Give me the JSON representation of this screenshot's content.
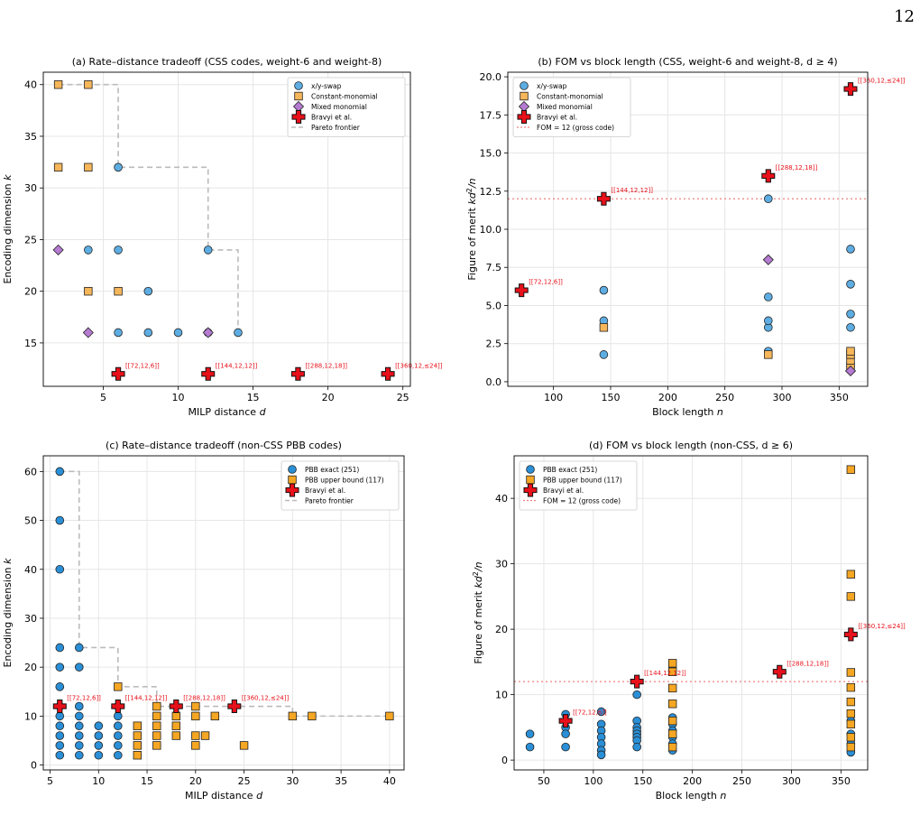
{
  "page": {
    "number": "12"
  },
  "colors": {
    "xy_swap": "#5dade2",
    "constant_monomial": "#f6b65a",
    "mixed_monomial": "#b57bd1",
    "bravyi": "#e8101a",
    "pareto": "#bbbbbb",
    "fom_line": "#f08080",
    "pbb_exact": "#2a8fd6",
    "pbb_upper": "#f5a623",
    "annotation": "#e8101a",
    "grid": "#e6e6e6"
  },
  "chart_data": [
    {
      "type": "scatter",
      "title": "(a) Rate–distance tradeoff (CSS codes, weight-6 and weight-8)",
      "xlabel": "MILP distance d",
      "ylabel": "Encoding dimension k",
      "xlim": [
        1,
        25.5
      ],
      "ylim": [
        10.8,
        41.2
      ],
      "xticks": [
        5,
        10,
        15,
        20,
        25
      ],
      "yticks": [
        15,
        20,
        25,
        30,
        35,
        40
      ],
      "grid": true,
      "legend_position": "top-right",
      "series": [
        {
          "name": "x/y-swap",
          "marker": "circle",
          "color": "#5dade2",
          "points": [
            [
              4,
              24
            ],
            [
              6,
              32
            ],
            [
              6,
              24
            ],
            [
              6,
              16
            ],
            [
              8,
              20
            ],
            [
              8,
              16
            ],
            [
              10,
              16
            ],
            [
              12,
              24
            ],
            [
              12,
              16
            ],
            [
              14,
              16
            ]
          ]
        },
        {
          "name": "Constant-monomial",
          "marker": "square",
          "color": "#f6b65a",
          "points": [
            [
              2,
              40
            ],
            [
              4,
              40
            ],
            [
              2,
              32
            ],
            [
              4,
              32
            ],
            [
              4,
              20
            ],
            [
              6,
              20
            ]
          ]
        },
        {
          "name": "Mixed monomial",
          "marker": "diamond",
          "color": "#b57bd1",
          "points": [
            [
              2,
              24
            ],
            [
              4,
              16
            ],
            [
              12,
              16
            ]
          ]
        },
        {
          "name": "Bravyi et al.",
          "marker": "plus",
          "color": "#e8101a",
          "points": [
            [
              6,
              12
            ],
            [
              12,
              12
            ],
            [
              18,
              12
            ],
            [
              24,
              12
            ]
          ],
          "labels": [
            "[[72,12,6]]",
            "[[144,12,12]]",
            "[[288,12,18]]",
            "[[360,12,≤24]]"
          ]
        },
        {
          "name": "Pareto frontier",
          "marker": "dashed-line",
          "color": "#bbbbbb",
          "points": [
            [
              2,
              40
            ],
            [
              6,
              40
            ],
            [
              6,
              32
            ],
            [
              12,
              32
            ],
            [
              12,
              24
            ],
            [
              14,
              24
            ],
            [
              14,
              16
            ]
          ]
        }
      ]
    },
    {
      "type": "scatter",
      "title": "(b) FOM vs block length (CSS, weight-6 and weight-8, d ≥ 4)",
      "xlabel": "Block length n",
      "ylabel": "Figure of merit kd²/n",
      "xlim": [
        60,
        375
      ],
      "ylim": [
        -0.3,
        20.3
      ],
      "xticks": [
        100,
        150,
        200,
        250,
        300,
        350
      ],
      "yticks": [
        0.0,
        2.5,
        5.0,
        7.5,
        10.0,
        12.5,
        15.0,
        17.5,
        20.0
      ],
      "grid": true,
      "legend_position": "top-left",
      "series": [
        {
          "name": "x/y-swap",
          "marker": "circle",
          "color": "#5dade2",
          "points": [
            [
              144,
              1.78
            ],
            [
              144,
              4.0
            ],
            [
              144,
              6.0
            ],
            [
              288,
              2.0
            ],
            [
              288,
              3.56
            ],
            [
              288,
              4.0
            ],
            [
              288,
              5.56
            ],
            [
              288,
              12.0
            ],
            [
              360,
              3.56
            ],
            [
              360,
              4.44
            ],
            [
              360,
              6.4
            ],
            [
              360,
              8.7
            ],
            [
              360,
              1.0
            ]
          ]
        },
        {
          "name": "Constant-monomial",
          "marker": "square",
          "color": "#f6b65a",
          "points": [
            [
              144,
              3.56
            ],
            [
              288,
              1.78
            ],
            [
              360,
              1.0
            ],
            [
              360,
              1.4
            ],
            [
              360,
              1.78
            ],
            [
              360,
              2.0
            ]
          ]
        },
        {
          "name": "Mixed monomial",
          "marker": "diamond",
          "color": "#b57bd1",
          "points": [
            [
              288,
              8.0
            ],
            [
              360,
              0.71
            ]
          ]
        },
        {
          "name": "Bravyi et al.",
          "marker": "plus",
          "color": "#e8101a",
          "points": [
            [
              72,
              6.0
            ],
            [
              144,
              12.0
            ],
            [
              288,
              13.5
            ],
            [
              360,
              19.2
            ]
          ],
          "labels": [
            "[[72,12,6]]",
            "[[144,12,12]]",
            "[[288,12,18]]",
            "[[360,12,≤24]]"
          ]
        },
        {
          "name": "FOM = 12 (gross code)",
          "marker": "dotted-line",
          "color": "#f08080",
          "hline": 12
        }
      ]
    },
    {
      "type": "scatter",
      "title": "(c) Rate–distance tradeoff (non-CSS PBB codes)",
      "xlabel": "MILP distance d",
      "ylabel": "Encoding dimension k",
      "xlim": [
        4.3,
        41.5
      ],
      "ylim": [
        -1,
        63.2
      ],
      "xticks": [
        5,
        10,
        15,
        20,
        25,
        30,
        35,
        40
      ],
      "yticks": [
        0,
        10,
        20,
        30,
        40,
        50,
        60
      ],
      "grid": true,
      "legend_position": "top-right",
      "series": [
        {
          "name": "PBB exact (251)",
          "marker": "circle",
          "color": "#2a8fd6",
          "points": [
            [
              6,
              60
            ],
            [
              6,
              50
            ],
            [
              6,
              40
            ],
            [
              6,
              24
            ],
            [
              6,
              20
            ],
            [
              6,
              16
            ],
            [
              6,
              12
            ],
            [
              6,
              10
            ],
            [
              6,
              8
            ],
            [
              6,
              6
            ],
            [
              6,
              4
            ],
            [
              6,
              2
            ],
            [
              8,
              24
            ],
            [
              8,
              20
            ],
            [
              8,
              12
            ],
            [
              8,
              10
            ],
            [
              8,
              8
            ],
            [
              8,
              6
            ],
            [
              8,
              4
            ],
            [
              8,
              2
            ],
            [
              10,
              8
            ],
            [
              10,
              6
            ],
            [
              10,
              4
            ],
            [
              10,
              2
            ],
            [
              12,
              12
            ],
            [
              12,
              10
            ],
            [
              12,
              8
            ],
            [
              12,
              6
            ],
            [
              12,
              4
            ],
            [
              12,
              2
            ]
          ]
        },
        {
          "name": "PBB upper bound (117)",
          "marker": "square",
          "color": "#f5a623",
          "points": [
            [
              12,
              16
            ],
            [
              14,
              8
            ],
            [
              14,
              6
            ],
            [
              14,
              4
            ],
            [
              14,
              2
            ],
            [
              16,
              12
            ],
            [
              16,
              10
            ],
            [
              16,
              8
            ],
            [
              16,
              6
            ],
            [
              16,
              4
            ],
            [
              18,
              10
            ],
            [
              18,
              8
            ],
            [
              18,
              6
            ],
            [
              20,
              12
            ],
            [
              20,
              10
            ],
            [
              20,
              6
            ],
            [
              20,
              4
            ],
            [
              21,
              6
            ],
            [
              22,
              10
            ],
            [
              25,
              4
            ],
            [
              30,
              10
            ],
            [
              32,
              10
            ],
            [
              40,
              10
            ]
          ]
        },
        {
          "name": "Bravyi et al.",
          "marker": "plus",
          "color": "#e8101a",
          "points": [
            [
              6,
              12
            ],
            [
              12,
              12
            ],
            [
              18,
              12
            ],
            [
              24,
              12
            ]
          ],
          "labels": [
            "[[72,12,6]]",
            "[[144,12,12]]",
            "[[288,12,18]]",
            "[[360,12,≤24]]"
          ]
        },
        {
          "name": "Pareto frontier",
          "marker": "dashed-line",
          "color": "#bbbbbb",
          "points": [
            [
              6,
              60
            ],
            [
              8,
              60
            ],
            [
              8,
              24
            ],
            [
              12,
              24
            ],
            [
              12,
              16
            ],
            [
              16,
              16
            ],
            [
              16,
              12
            ],
            [
              30,
              12
            ],
            [
              30,
              10
            ],
            [
              40,
              10
            ]
          ]
        }
      ]
    },
    {
      "type": "scatter",
      "title": "(d) FOM vs block length (non-CSS, d ≥ 6)",
      "xlabel": "Block length n",
      "ylabel": "Figure of merit kd²/n",
      "xlim": [
        20,
        377
      ],
      "ylim": [
        -1.5,
        46.5
      ],
      "xticks": [
        50,
        100,
        150,
        200,
        250,
        300,
        350
      ],
      "yticks": [
        0,
        10,
        20,
        30,
        40
      ],
      "grid": true,
      "legend_position": "top-left",
      "series": [
        {
          "name": "PBB exact (251)",
          "marker": "circle",
          "color": "#2a8fd6",
          "points": [
            [
              36,
              4
            ],
            [
              36,
              2
            ],
            [
              72,
              7
            ],
            [
              72,
              5
            ],
            [
              72,
              4
            ],
            [
              72,
              2
            ],
            [
              108,
              7.4
            ],
            [
              108,
              5.5
            ],
            [
              108,
              4.5
            ],
            [
              108,
              3.5
            ],
            [
              108,
              2.5
            ],
            [
              108,
              1.5
            ],
            [
              108,
              0.8
            ],
            [
              144,
              10
            ],
            [
              144,
              6
            ],
            [
              144,
              5
            ],
            [
              144,
              4.5
            ],
            [
              144,
              4
            ],
            [
              144,
              3.5
            ],
            [
              144,
              3
            ],
            [
              144,
              2
            ],
            [
              180,
              6.5
            ],
            [
              180,
              5.5
            ],
            [
              180,
              4.5
            ],
            [
              180,
              3.5
            ],
            [
              180,
              2.5
            ],
            [
              180,
              1.5
            ],
            [
              360,
              6
            ],
            [
              360,
              4
            ],
            [
              360,
              2.5
            ],
            [
              360,
              1.2
            ]
          ]
        },
        {
          "name": "PBB upper bound (117)",
          "marker": "square",
          "color": "#f5a623",
          "points": [
            [
              180,
              14.8
            ],
            [
              180,
              13.5
            ],
            [
              180,
              11
            ],
            [
              180,
              8.6
            ],
            [
              180,
              6
            ],
            [
              180,
              4
            ],
            [
              180,
              2
            ],
            [
              360,
              44.4
            ],
            [
              360,
              28.4
            ],
            [
              360,
              25
            ],
            [
              360,
              13.4
            ],
            [
              360,
              11.1
            ],
            [
              360,
              8.9
            ],
            [
              360,
              7.1
            ],
            [
              360,
              5.5
            ],
            [
              360,
              3.5
            ],
            [
              360,
              2
            ]
          ]
        },
        {
          "name": "Bravyi et al.",
          "marker": "plus",
          "color": "#e8101a",
          "points": [
            [
              72,
              6
            ],
            [
              144,
              12
            ],
            [
              288,
              13.5
            ],
            [
              360,
              19.2
            ]
          ],
          "labels": [
            "[[72,12,6]]",
            "[[144,12,12]]",
            "[[288,12,18]]",
            "[[360,12,≤24]]"
          ]
        },
        {
          "name": "FOM = 12 (gross code)",
          "marker": "dotted-line",
          "color": "#f08080",
          "hline": 12
        }
      ]
    }
  ]
}
